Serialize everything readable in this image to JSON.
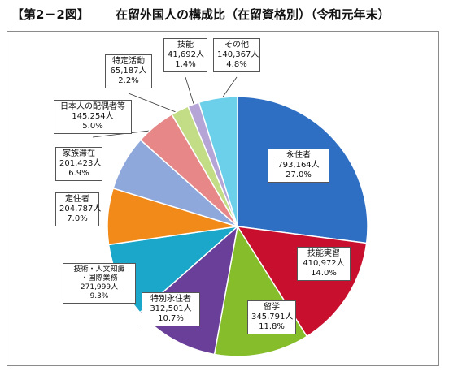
{
  "header": {
    "figure_label": "【第2－2図】",
    "title": "在留外国人の構成比（在留資格別）（令和元年末）"
  },
  "chart_data": {
    "type": "pie",
    "title": "在留外国人の構成比（在留資格別）（令和元年末）",
    "slices": [
      {
        "name": "永住者",
        "value_label": "793,164人",
        "value": 793164,
        "percent_label": "27.0%",
        "percent": 27.0,
        "color": "#2e6fc3"
      },
      {
        "name": "技能実習",
        "value_label": "410,972人",
        "value": 410972,
        "percent_label": "14.0%",
        "percent": 14.0,
        "color": "#c8102e"
      },
      {
        "name": "留学",
        "value_label": "345,791人",
        "value": 345791,
        "percent_label": "11.8%",
        "percent": 11.8,
        "color": "#86bd2a"
      },
      {
        "name": "特別永住者",
        "value_label": "312,501人",
        "value": 312501,
        "percent_label": "10.7%",
        "percent": 10.7,
        "color": "#6a3f9a"
      },
      {
        "name": "技術・人文知識\n・国際業務",
        "value_label": "271,999人",
        "value": 271999,
        "percent_label": "9.3%",
        "percent": 9.3,
        "color": "#1aa7c9"
      },
      {
        "name": "定住者",
        "value_label": "204,787人",
        "value": 204787,
        "percent_label": "7.0%",
        "percent": 7.0,
        "color": "#f28a1a"
      },
      {
        "name": "家族滞在",
        "value_label": "201,423人",
        "value": 201423,
        "percent_label": "6.9%",
        "percent": 6.9,
        "color": "#8fa8dc"
      },
      {
        "name": "日本人の配偶者等",
        "value_label": "145,254人",
        "value": 145254,
        "percent_label": "5.0%",
        "percent": 5.0,
        "color": "#e78787"
      },
      {
        "name": "特定活動",
        "value_label": "65,187人",
        "value": 65187,
        "percent_label": "2.2%",
        "percent": 2.2,
        "color": "#c3dd86"
      },
      {
        "name": "技能",
        "value_label": "41,692人",
        "value": 41692,
        "percent_label": "1.4%",
        "percent": 1.4,
        "color": "#b5a4d6"
      },
      {
        "name": "その他",
        "value_label": "140,367人",
        "value": 140367,
        "percent_label": "4.8%",
        "percent": 4.8,
        "color": "#6cd0ea"
      }
    ],
    "start_position": "top, clockwise",
    "legend": "callouts"
  }
}
